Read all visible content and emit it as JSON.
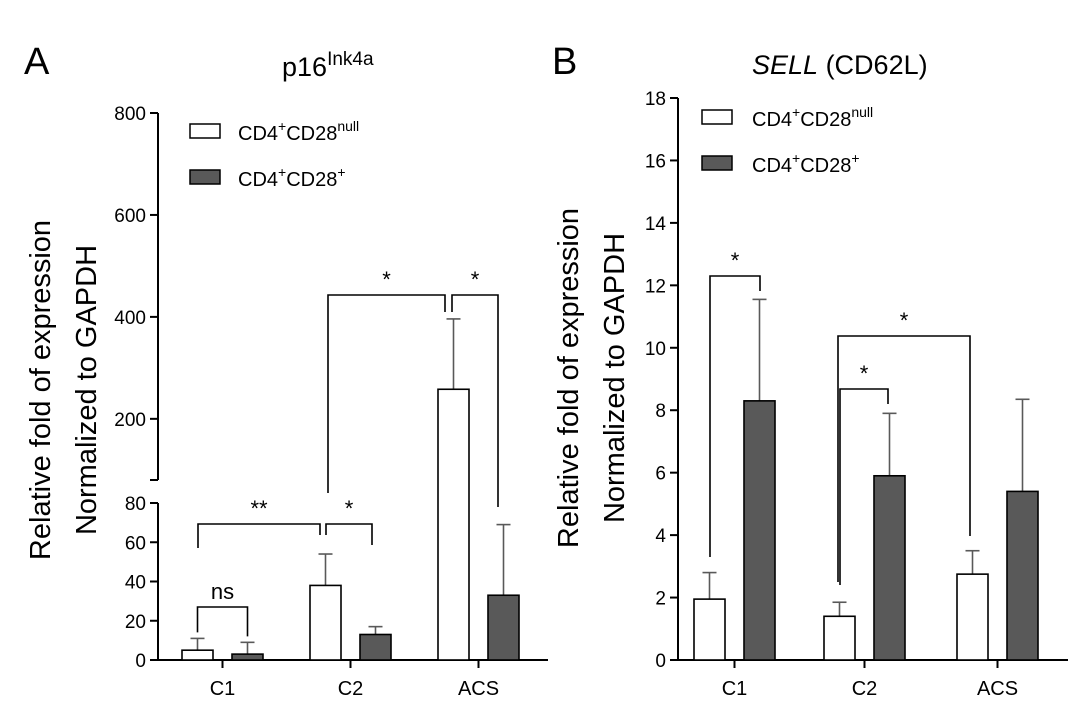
{
  "chart_data": [
    {
      "type": "bar",
      "panel_label": "A",
      "title": "p16",
      "title_superscript": "Ink4a",
      "ylabel_line1": "Relative fold of expression",
      "ylabel_line2": "Normalized to GAPDH",
      "categories": [
        "C1",
        "C2",
        "ACS"
      ],
      "y_axis_break": true,
      "ylim_lower": [
        0,
        80
      ],
      "ylim_upper": [
        80,
        800
      ],
      "yticks_lower": [
        "0",
        "20",
        "40",
        "60",
        "80"
      ],
      "yticks_upper": [
        "200",
        "400",
        "600",
        "800"
      ],
      "series": [
        {
          "name": "CD4",
          "name_sup1": "+",
          "name_mid": "CD28",
          "name_sup2": "null",
          "color": "#ffffff",
          "values": [
            5,
            38,
            258
          ],
          "errors": [
            6,
            16,
            138
          ]
        },
        {
          "name": "CD4",
          "name_sup1": "+",
          "name_mid": "CD28",
          "name_sup2": "+",
          "color": "#595959",
          "values": [
            3,
            13,
            33
          ],
          "errors": [
            6,
            4,
            36
          ]
        }
      ],
      "annotations": [
        {
          "label": "ns",
          "between": [
            "C1 CD4+CD28null",
            "C1 CD4+CD28+"
          ]
        },
        {
          "label": "**",
          "between": [
            "C1 CD4+CD28null",
            "C2 CD4+CD28null"
          ]
        },
        {
          "label": "*",
          "between": [
            "C2 CD4+CD28null",
            "C2 CD4+CD28+"
          ]
        },
        {
          "label": "*",
          "between": [
            "C2 CD4+CD28null",
            "ACS CD4+CD28null"
          ]
        },
        {
          "label": "*",
          "between": [
            "ACS CD4+CD28null",
            "ACS CD4+CD28+"
          ]
        }
      ],
      "legend_position": "top-left"
    },
    {
      "type": "bar",
      "panel_label": "B",
      "title_italic": "SELL",
      "title_rest": " (CD62L)",
      "ylabel_line1": "Relative fold of expression",
      "ylabel_line2": "Normalized to GAPDH",
      "categories": [
        "C1",
        "C2",
        "ACS"
      ],
      "ylim": [
        0,
        18
      ],
      "yticks": [
        "0",
        "2",
        "4",
        "6",
        "8",
        "10",
        "12",
        "14",
        "16",
        "18"
      ],
      "series": [
        {
          "name": "CD4",
          "name_sup1": "+",
          "name_mid": "CD28",
          "name_sup2": "null",
          "color": "#ffffff",
          "values": [
            1.95,
            1.4,
            2.75
          ],
          "errors": [
            0.85,
            0.45,
            0.75
          ]
        },
        {
          "name": "CD4",
          "name_sup1": "+",
          "name_mid": "CD28",
          "name_sup2": "+",
          "color": "#595959",
          "values": [
            8.3,
            5.9,
            5.4
          ],
          "errors": [
            3.25,
            2.0,
            2.95
          ]
        }
      ],
      "annotations": [
        {
          "label": "*",
          "between": [
            "C1 CD4+CD28null",
            "C1 CD4+CD28+"
          ]
        },
        {
          "label": "*",
          "between": [
            "C2 CD4+CD28null",
            "C2 CD4+CD28+"
          ]
        },
        {
          "label": "*",
          "between": [
            "C2 CD4+CD28null",
            "ACS CD4+CD28null"
          ]
        }
      ],
      "legend_position": "top-left"
    }
  ]
}
